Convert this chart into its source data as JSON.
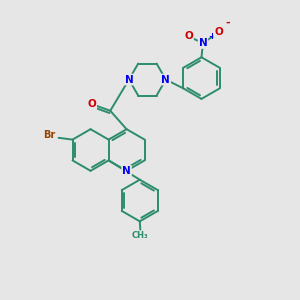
{
  "background_color": "#e6e6e6",
  "bond_color": "#2d8c6e",
  "atom_colors": {
    "N": "#0000ee",
    "O": "#cc0000",
    "Br": "#994400",
    "C": "#2d8c6e"
  },
  "figsize": [
    3.0,
    3.0
  ],
  "dpi": 100
}
